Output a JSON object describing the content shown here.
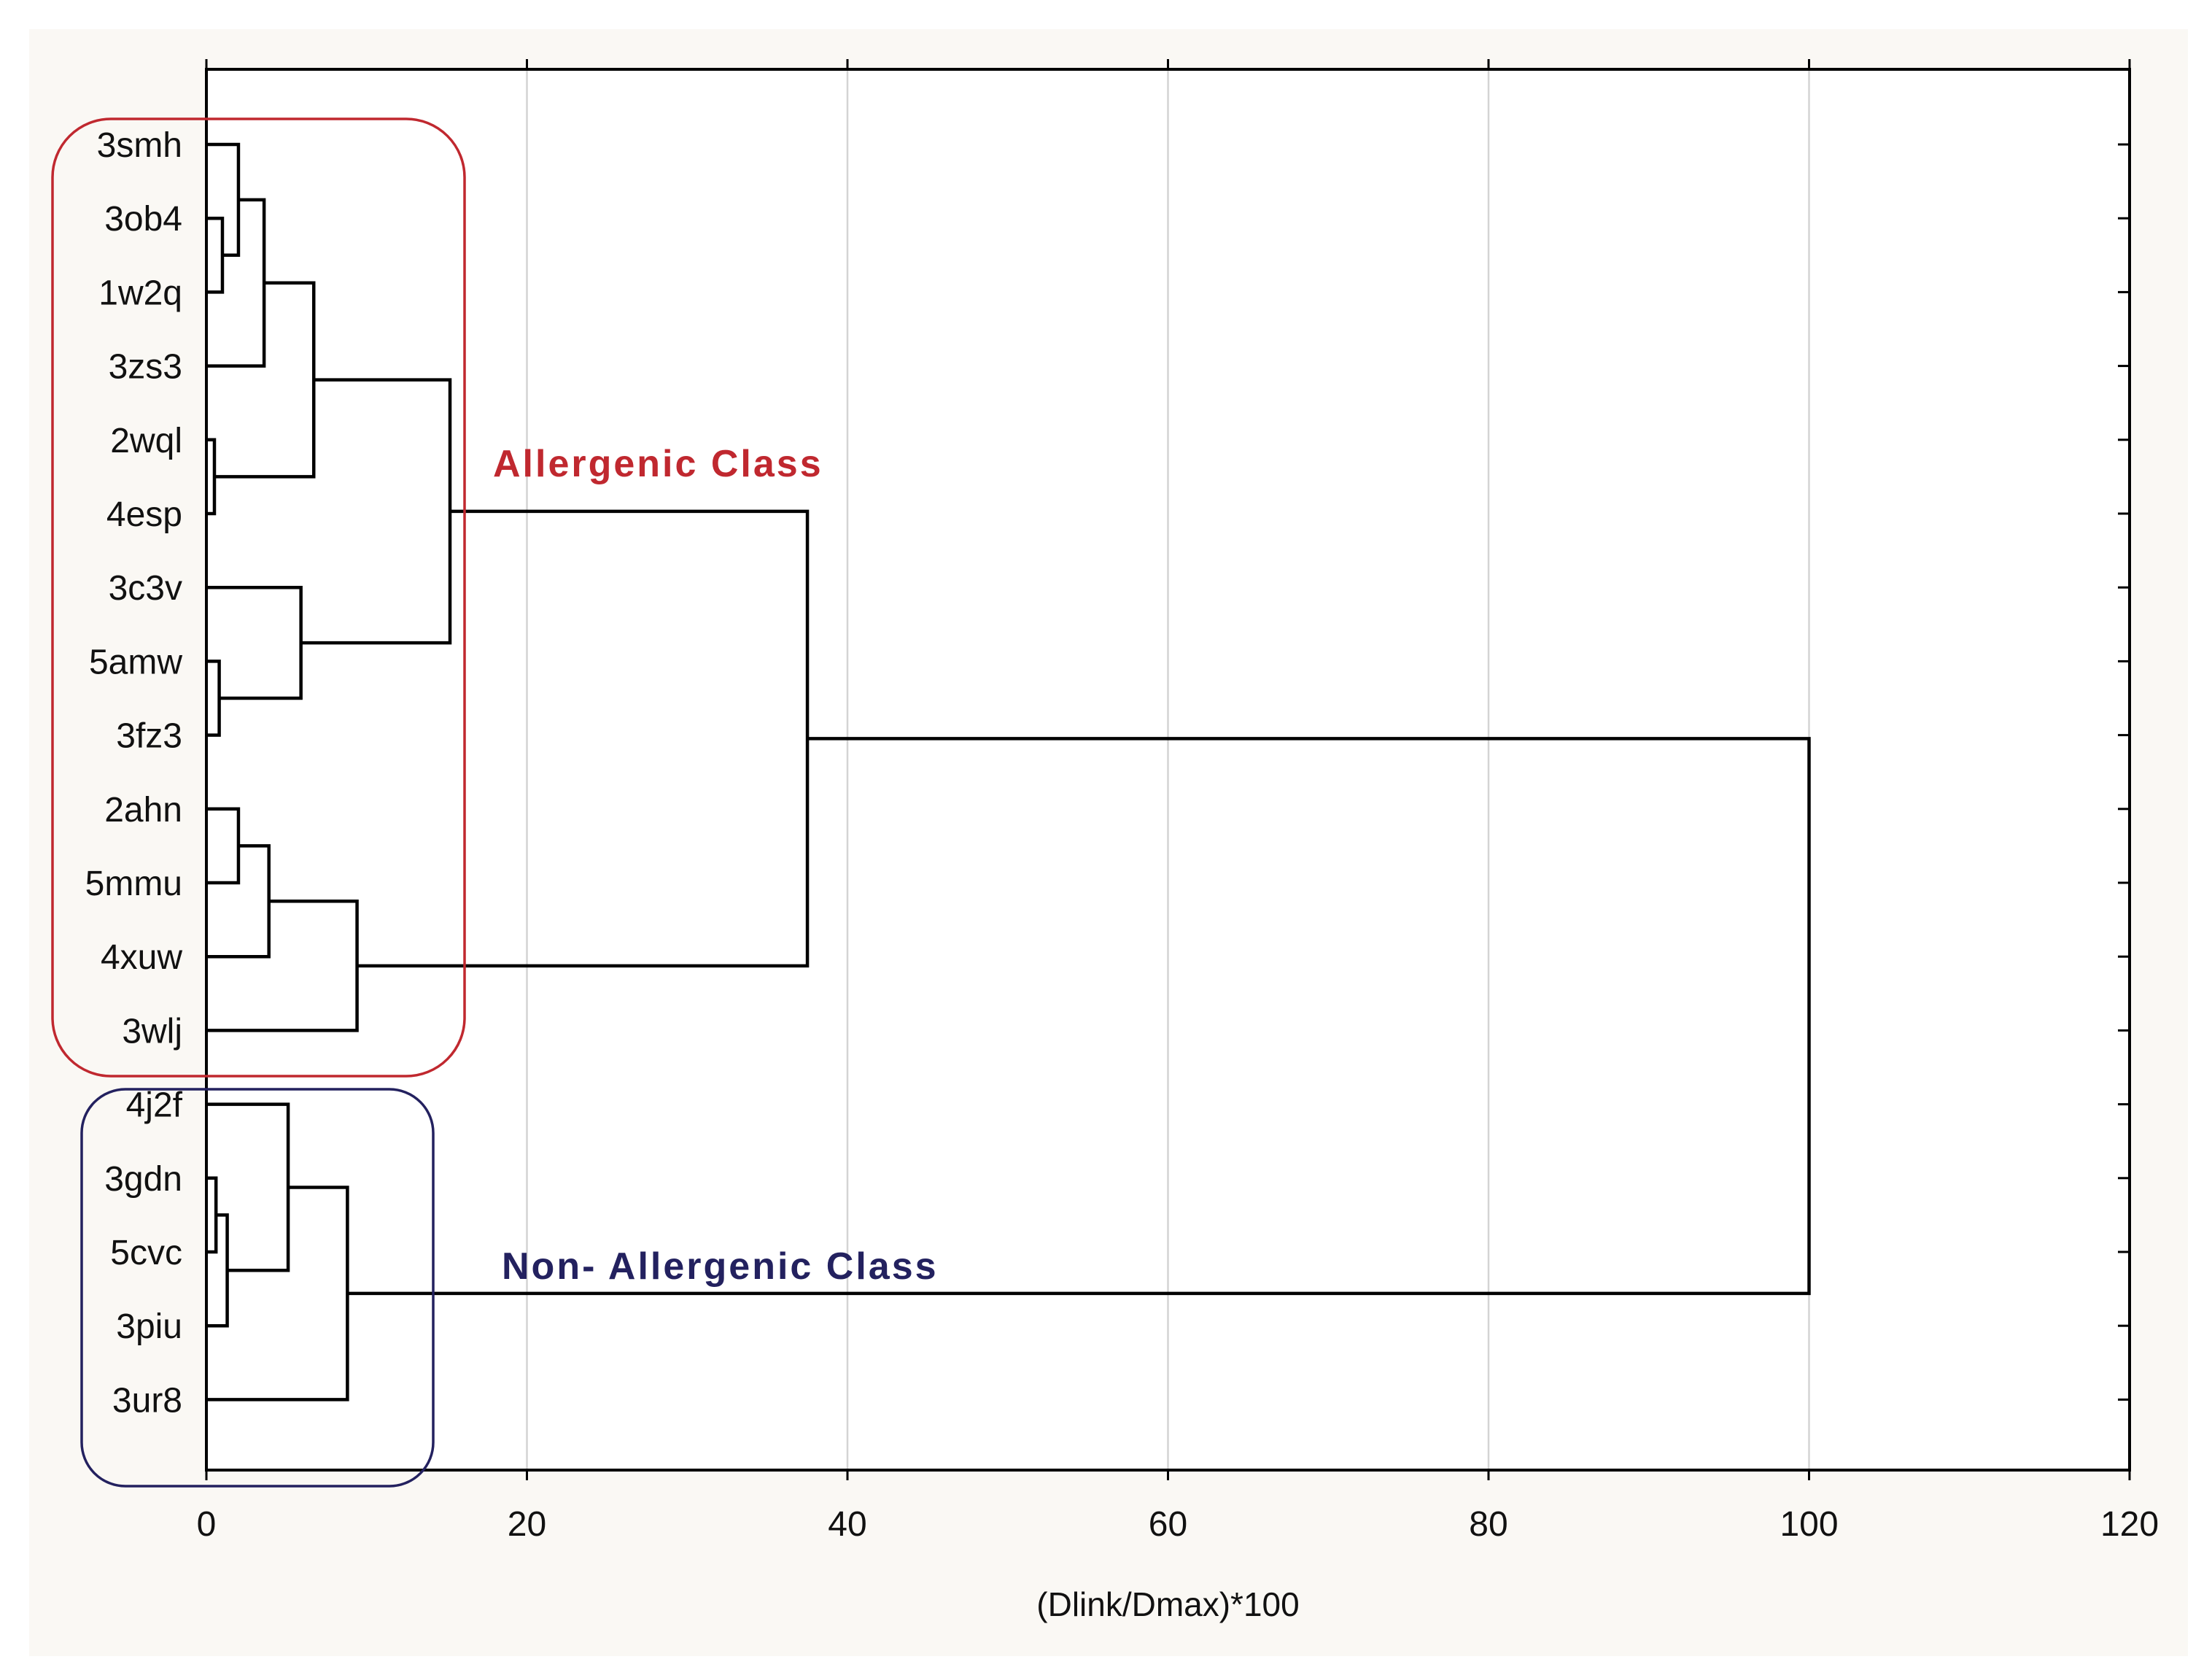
{
  "chart_data": {
    "type": "dendrogram",
    "orientation": "horizontal",
    "xlabel": "(Dlink/Dmax)*100",
    "xlim": [
      0,
      120
    ],
    "x_ticks": [
      0,
      20,
      40,
      60,
      80,
      100,
      120
    ],
    "grid": "vertical",
    "leaves": [
      "3smh",
      "3ob4",
      "1w2q",
      "3zs3",
      "2wql",
      "4esp",
      "3c3v",
      "5amw",
      "3fz3",
      "2ahn",
      "5mmu",
      "4xuw",
      "3wlj",
      "4j2f",
      "3gdn",
      "5cvc",
      "3piu",
      "3ur8"
    ],
    "merges": [
      {
        "a": "L1",
        "b": "L2",
        "height": 1.0
      },
      {
        "a": "L0",
        "b": "M0",
        "height": 2.0
      },
      {
        "a": "M1",
        "b": "L3",
        "height": 3.6
      },
      {
        "a": "L4",
        "b": "L5",
        "height": 0.5
      },
      {
        "a": "M2",
        "b": "M3",
        "height": 6.7
      },
      {
        "a": "L7",
        "b": "L8",
        "height": 0.8
      },
      {
        "a": "L6",
        "b": "M5",
        "height": 5.9
      },
      {
        "a": "M4",
        "b": "M6",
        "height": 15.2
      },
      {
        "a": "L9",
        "b": "L10",
        "height": 2.0
      },
      {
        "a": "M8",
        "b": "L11",
        "height": 3.9
      },
      {
        "a": "M9",
        "b": "L12",
        "height": 9.4
      },
      {
        "a": "M7",
        "b": "M10",
        "height": 37.5
      },
      {
        "a": "L14",
        "b": "L15",
        "height": 0.6
      },
      {
        "a": "M12",
        "b": "L16",
        "height": 1.3
      },
      {
        "a": "L13",
        "b": "M13",
        "height": 5.1
      },
      {
        "a": "M14",
        "b": "L17",
        "height": 8.8
      },
      {
        "a": "M11",
        "b": "M15",
        "height": 100.0
      }
    ],
    "groups": [
      {
        "label": "Allergenic Class",
        "color": "#c0282f",
        "first_leaf": 0,
        "last_leaf": 12
      },
      {
        "label": "Non- Allergenic Class",
        "color": "#23215f",
        "first_leaf": 13,
        "last_leaf": 17
      }
    ]
  }
}
